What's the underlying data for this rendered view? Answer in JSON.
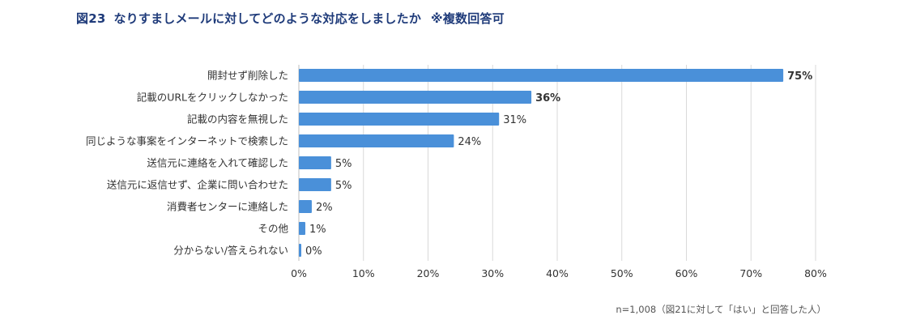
{
  "header": {
    "figure_number": "図23",
    "title": "なりすましメールに対してどのような対応をしましたか",
    "subtitle": "※複数回答可"
  },
  "footnote": "n=1,008（図21に対して「はい」と回答した人）",
  "chart_data": {
    "type": "bar",
    "orientation": "horizontal",
    "categories": [
      "開封せず削除した",
      "記載のURLをクリックしなかった",
      "記載の内容を無視した",
      "同じような事案をインターネットで検索した",
      "送信元に連絡を入れて確認した",
      "送信元に返信せず、企業に問い合わせた",
      "消費者センターに連絡した",
      "その他",
      "分からない/答えられない"
    ],
    "values": [
      75,
      36,
      31,
      24,
      5,
      5,
      2,
      1,
      0
    ],
    "value_labels": [
      "75%",
      "36%",
      "31%",
      "24%",
      "5%",
      "5%",
      "2%",
      "1%",
      "0%"
    ],
    "bold_labels": [
      true,
      true,
      false,
      false,
      false,
      false,
      false,
      false,
      false
    ],
    "xlim": [
      0,
      80
    ],
    "xticks": [
      0,
      10,
      20,
      30,
      40,
      50,
      60,
      70,
      80
    ],
    "xtick_labels": [
      "0%",
      "10%",
      "20%",
      "30%",
      "40%",
      "50%",
      "60%",
      "70%",
      "80%"
    ],
    "grid": true,
    "bar_color": "#4a90d9",
    "grid_color": "#d9d9d9",
    "title_color": "#1f3b7a"
  }
}
